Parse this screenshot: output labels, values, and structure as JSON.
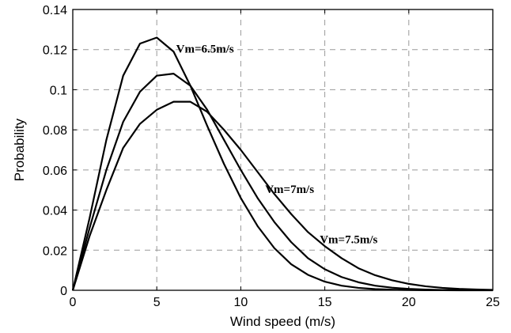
{
  "chart_data": {
    "type": "line",
    "title": "",
    "xlabel": "Wind speed (m/s)",
    "ylabel": "Probability",
    "xlim": [
      0,
      25
    ],
    "ylim": [
      0,
      0.14
    ],
    "xticks": [
      0,
      5,
      10,
      15,
      20,
      25
    ],
    "yticks": [
      0,
      0.02,
      0.04,
      0.06,
      0.08,
      0.1,
      0.12,
      0.14
    ],
    "xtick_labels": [
      "0",
      "5",
      "10",
      "15",
      "20",
      "25"
    ],
    "ytick_labels": [
      "0",
      "0.02",
      "0.04",
      "0.06",
      "0.08",
      "0.1",
      "0.12",
      "0.14"
    ],
    "grid": true,
    "x": [
      0,
      1,
      2,
      3,
      4,
      5,
      6,
      7,
      8,
      9,
      10,
      11,
      12,
      13,
      14,
      15,
      16,
      17,
      18,
      19,
      20,
      21,
      22,
      23,
      24,
      25
    ],
    "series": [
      {
        "annotation": "Vm=6.5m/s",
        "values": [
          0,
          0.036,
          0.075,
          0.107,
          0.123,
          0.126,
          0.119,
          0.102,
          0.082,
          0.063,
          0.046,
          0.032,
          0.021,
          0.013,
          0.0077,
          0.0043,
          0.0023,
          0.0012,
          0.0006,
          0.0003,
          0.00013,
          6e-05,
          3e-05,
          1e-05,
          0,
          0
        ]
      },
      {
        "annotation": "Vm=7m/s",
        "values": [
          0,
          0.031,
          0.06,
          0.084,
          0.099,
          0.107,
          0.108,
          0.102,
          0.09,
          0.075,
          0.06,
          0.046,
          0.034,
          0.024,
          0.016,
          0.0105,
          0.0066,
          0.004,
          0.0023,
          0.0013,
          0.0007,
          0.00035,
          0.00017,
          8e-05,
          4e-05,
          2e-05
        ]
      },
      {
        "annotation": "Vm=7.5m/s",
        "values": [
          0,
          0.027,
          0.05,
          0.071,
          0.083,
          0.09,
          0.094,
          0.094,
          0.089,
          0.08,
          0.07,
          0.059,
          0.048,
          0.038,
          0.029,
          0.022,
          0.016,
          0.011,
          0.0075,
          0.005,
          0.0032,
          0.002,
          0.0012,
          0.0007,
          0.0004,
          0.0002
        ]
      }
    ],
    "annotations": [
      {
        "text": "Vm=6.5m/s",
        "x": 6.15,
        "y": 0.1185
      },
      {
        "text": "Vm=7m/s",
        "x": 11.45,
        "y": 0.0485
      },
      {
        "text": "Vm=7.5m/s",
        "x": 14.7,
        "y": 0.0235
      }
    ]
  }
}
